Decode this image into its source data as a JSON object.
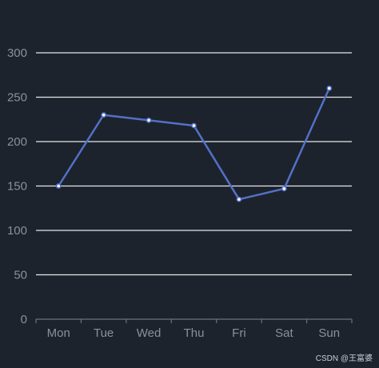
{
  "chart_data": {
    "type": "line",
    "categories": [
      "Mon",
      "Tue",
      "Wed",
      "Thu",
      "Fri",
      "Sat",
      "Sun"
    ],
    "series": [
      {
        "values": [
          150,
          230,
          224,
          218,
          135,
          147,
          260
        ]
      }
    ],
    "ylim": [
      0,
      300
    ],
    "yticks": [
      0,
      50,
      100,
      150,
      200,
      250,
      300
    ],
    "grid": true,
    "colors": {
      "background": "#1c232c",
      "line": "#5470c6",
      "grid": "#e6e8ec",
      "axis": "#6e7079",
      "label": "#8b9199"
    }
  },
  "watermark": "CSDN @王富婆"
}
